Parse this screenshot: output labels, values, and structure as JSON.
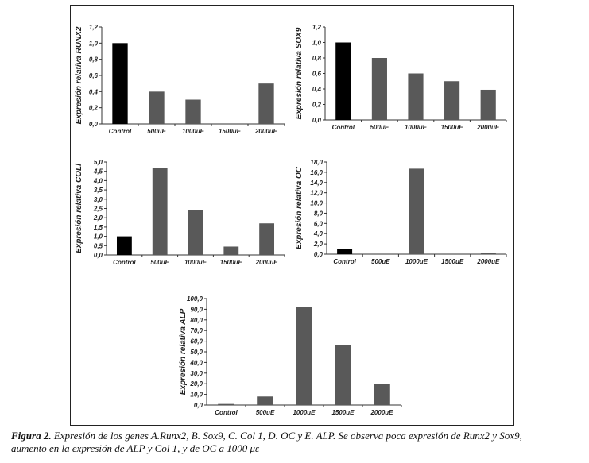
{
  "chart_data": [
    {
      "type": "bar",
      "ylabel": "Expresión relativa RUNX2",
      "categories": [
        "Control",
        "500uE",
        "1000uE",
        "1500uE",
        "2000uE"
      ],
      "values": [
        1.0,
        0.4,
        0.3,
        0.0,
        0.5
      ],
      "colors": [
        "#000000",
        "#595959",
        "#595959",
        "#595959",
        "#595959"
      ],
      "ylim": [
        0,
        1.2
      ],
      "yticks": [
        "0,0",
        "0,2",
        "0,4",
        "0,6",
        "0,8",
        "1,0",
        "1,2"
      ]
    },
    {
      "type": "bar",
      "ylabel": "Expresión relativa SOX9",
      "categories": [
        "Control",
        "500uE",
        "1000uE",
        "1500uE",
        "2000uE"
      ],
      "values": [
        1.0,
        0.8,
        0.6,
        0.5,
        0.39
      ],
      "colors": [
        "#000000",
        "#595959",
        "#595959",
        "#595959",
        "#595959"
      ],
      "ylim": [
        0,
        1.2
      ],
      "yticks": [
        "0,0",
        "0,2",
        "0,4",
        "0,6",
        "0,8",
        "1,0",
        "1,2"
      ]
    },
    {
      "type": "bar",
      "ylabel": "Expresión relativa COLl",
      "categories": [
        "Control",
        "500uE",
        "1000uE",
        "1500uE",
        "2000uE"
      ],
      "values": [
        1.0,
        4.7,
        2.4,
        0.45,
        1.7
      ],
      "colors": [
        "#000000",
        "#595959",
        "#595959",
        "#595959",
        "#595959"
      ],
      "ylim": [
        0,
        5
      ],
      "yticks": [
        "0,0",
        "0,5",
        "1,0",
        "1,5",
        "2,0",
        "2,5",
        "3,0",
        "3,5",
        "4,0",
        "4,5",
        "5,0"
      ]
    },
    {
      "type": "bar",
      "ylabel": "Expresión relativa OC",
      "categories": [
        "Control",
        "500uE",
        "1000uE",
        "1500uE",
        "2000uE"
      ],
      "values": [
        1.0,
        0.0,
        16.7,
        0.0,
        0.3
      ],
      "colors": [
        "#000000",
        "#595959",
        "#595959",
        "#595959",
        "#595959"
      ],
      "ylim": [
        0,
        18
      ],
      "yticks": [
        "0,0",
        "2,0",
        "4,0",
        "6,0",
        "8,0",
        "10,0",
        "12,0",
        "14,0",
        "16,0",
        "18,0"
      ]
    },
    {
      "type": "bar",
      "ylabel": "Expresión relativa ALP",
      "categories": [
        "Control",
        "500uE",
        "1000uE",
        "1500uE",
        "2000uE"
      ],
      "values": [
        1.0,
        8.0,
        92.0,
        56.0,
        20.0
      ],
      "colors": [
        "#595959",
        "#595959",
        "#595959",
        "#595959",
        "#595959"
      ],
      "ylim": [
        0,
        100
      ],
      "yticks": [
        "0,0",
        "10,0",
        "20,0",
        "30,0",
        "40,0",
        "50,0",
        "60,0",
        "70,0",
        "80,0",
        "90,0",
        "100,0"
      ]
    }
  ],
  "caption": {
    "lead": "Figura 2.",
    "line1": " Expresión de los genes A.Runx2, B. Sox9, C. Col 1, D. OC y E. ALP. Se observa poca expresión de Runx2 y Sox9,",
    "line2": "aumento en la expresión de ALP y Col 1, y de OC a 1000 με"
  }
}
